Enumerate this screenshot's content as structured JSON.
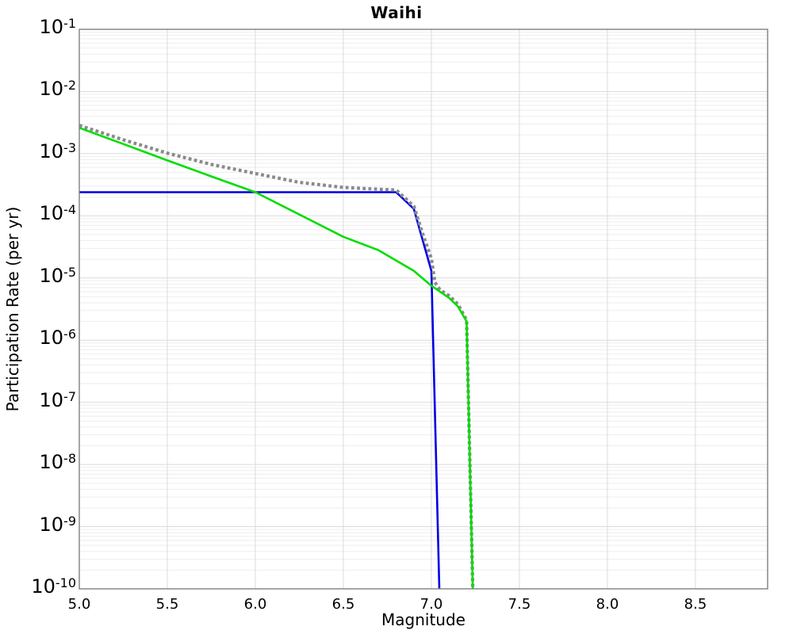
{
  "chart_data": {
    "type": "line",
    "title": "Waihi",
    "xlabel": "Magnitude",
    "ylabel": "Participation Rate (per yr)",
    "xlim": [
      5.0,
      8.91
    ],
    "ylog10_lim": [
      -10,
      -1
    ],
    "x_ticks": [
      5.0,
      5.5,
      6.0,
      6.5,
      7.0,
      7.5,
      8.0,
      8.5
    ],
    "y_tick_exponents": [
      -1,
      -2,
      -3,
      -4,
      -5,
      -6,
      -7,
      -8,
      -9,
      -10
    ],
    "grid": "major-and-minor-log",
    "legend": "none",
    "colors": {
      "grid_major": "#dbdbdb",
      "grid_minor": "#eeeeee",
      "plot_border": "#808080",
      "background": "#ffffff"
    },
    "series": [
      {
        "name": "blue-solid",
        "color": "#0000e8",
        "style": "solid",
        "width": 2.6,
        "points": [
          [
            5.0,
            0.00024
          ],
          [
            6.8,
            0.00024
          ],
          [
            6.9,
            0.00013
          ],
          [
            7.0,
            1.3e-05
          ],
          [
            7.045,
            1e-10
          ]
        ]
      },
      {
        "name": "grey-dotted-total",
        "color": "#8a8a8a",
        "style": "dotted",
        "width": 4.2,
        "points": [
          [
            5.0,
            0.00285
          ],
          [
            5.25,
            0.00167
          ],
          [
            5.5,
            0.00102
          ],
          [
            5.75,
            0.00067
          ],
          [
            6.0,
            0.00048
          ],
          [
            6.25,
            0.000345
          ],
          [
            6.5,
            0.000286
          ],
          [
            6.65,
            0.000272
          ],
          [
            6.8,
            0.00026
          ],
          [
            6.9,
            0.000143
          ],
          [
            6.95,
            5.2e-05
          ],
          [
            7.0,
            2.05e-05
          ],
          [
            7.02,
            8.5e-06
          ],
          [
            7.05,
            6.4e-06
          ],
          [
            7.1,
            5.2e-06
          ],
          [
            7.15,
            3.8e-06
          ],
          [
            7.2,
            2.1e-06
          ],
          [
            7.235,
            1e-10
          ]
        ]
      },
      {
        "name": "green-solid",
        "color": "#00dd00",
        "style": "solid",
        "width": 2.6,
        "points": [
          [
            5.0,
            0.0026
          ],
          [
            5.25,
            0.00143
          ],
          [
            5.5,
            0.00078
          ],
          [
            5.75,
            0.00043
          ],
          [
            6.0,
            0.00024
          ],
          [
            6.25,
            0.000105
          ],
          [
            6.5,
            4.6e-05
          ],
          [
            6.7,
            2.8e-05
          ],
          [
            6.9,
            1.3e-05
          ],
          [
            7.0,
            7.5e-06
          ],
          [
            7.1,
            4.8e-06
          ],
          [
            7.15,
            3.5e-06
          ],
          [
            7.2,
            2e-06
          ],
          [
            7.235,
            1e-10
          ]
        ]
      }
    ]
  }
}
